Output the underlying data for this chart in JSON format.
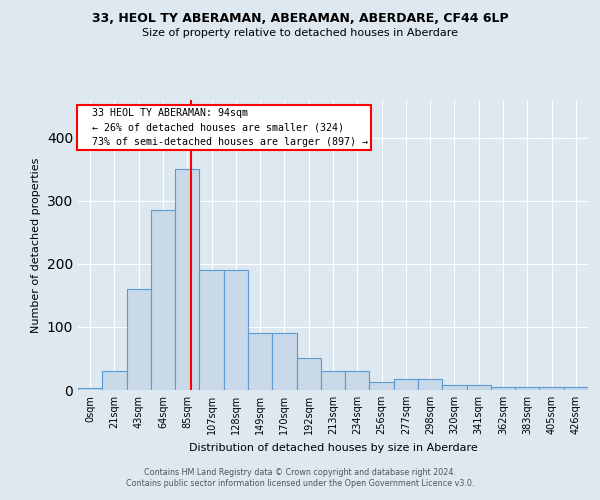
{
  "title": "33, HEOL TY ABERAMAN, ABERAMAN, ABERDARE, CF44 6LP",
  "subtitle": "Size of property relative to detached houses in Aberdare",
  "xlabel": "Distribution of detached houses by size in Aberdare",
  "ylabel": "Number of detached properties",
  "bar_labels": [
    "0sqm",
    "21sqm",
    "43sqm",
    "64sqm",
    "85sqm",
    "107sqm",
    "128sqm",
    "149sqm",
    "170sqm",
    "192sqm",
    "213sqm",
    "234sqm",
    "256sqm",
    "277sqm",
    "298sqm",
    "320sqm",
    "341sqm",
    "362sqm",
    "383sqm",
    "405sqm",
    "426sqm"
  ],
  "bar_values": [
    3,
    30,
    160,
    285,
    350,
    190,
    190,
    90,
    90,
    50,
    30,
    30,
    13,
    18,
    18,
    8,
    8,
    5,
    5,
    5,
    4
  ],
  "bar_color": "#c9d9e8",
  "bar_edge_color": "#5b9bd5",
  "background_color": "#dde8f0",
  "grid_color": "white",
  "pct_smaller": 26,
  "n_smaller": 324,
  "pct_larger_semi": 73,
  "n_larger_semi": 897,
  "vline_x": 4.14,
  "ylim": [
    0,
    460
  ],
  "footer_line1": "Contains HM Land Registry data © Crown copyright and database right 2024.",
  "footer_line2": "Contains public sector information licensed under the Open Government Licence v3.0."
}
